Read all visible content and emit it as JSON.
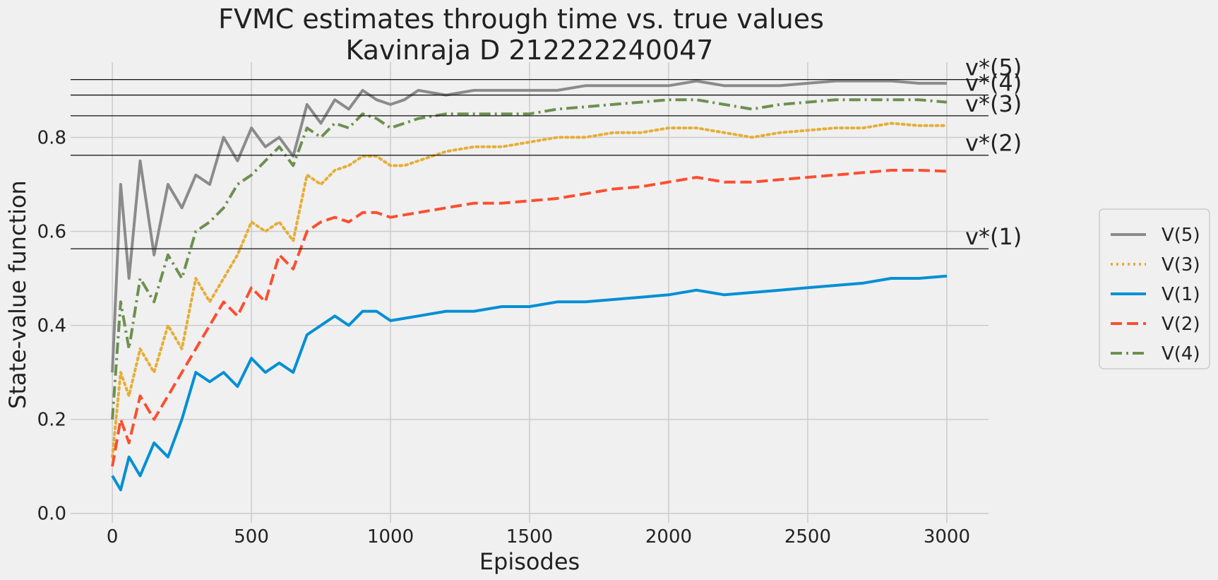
{
  "chart_data": {
    "type": "line",
    "title": "FVMC estimates through time vs. true values",
    "subtitle": "Kavinraja D 212222240047",
    "xlabel": "Episodes",
    "ylabel": "State-value function",
    "xlim": [
      -150,
      3150
    ],
    "ylim": [
      -0.02,
      0.96
    ],
    "xticks": [
      "0",
      "500",
      "1000",
      "1500",
      "2000",
      "2500",
      "3000"
    ],
    "yticks": [
      "0.0",
      "0.2",
      "0.4",
      "0.6",
      "0.8"
    ],
    "grid": true,
    "legend_position": "right",
    "reference_lines": [
      {
        "label": "v*(5)",
        "value": 0.923
      },
      {
        "label": "v*(4)",
        "value": 0.89
      },
      {
        "label": "v*(3)",
        "value": 0.846
      },
      {
        "label": "v*(2)",
        "value": 0.762
      },
      {
        "label": "v*(1)",
        "value": 0.563
      }
    ],
    "series": [
      {
        "name": "V(5)",
        "color": "#8b8b8b",
        "dash": "solid",
        "x": [
          0,
          30,
          60,
          100,
          150,
          200,
          250,
          300,
          350,
          400,
          450,
          500,
          550,
          600,
          650,
          700,
          750,
          800,
          850,
          900,
          950,
          1000,
          1050,
          1100,
          1200,
          1300,
          1400,
          1500,
          1600,
          1700,
          1800,
          1900,
          2000,
          2100,
          2200,
          2300,
          2400,
          2500,
          2600,
          2700,
          2800,
          2900,
          3000
        ],
        "y": [
          0.3,
          0.7,
          0.5,
          0.75,
          0.55,
          0.7,
          0.65,
          0.72,
          0.7,
          0.8,
          0.75,
          0.82,
          0.78,
          0.8,
          0.76,
          0.87,
          0.83,
          0.88,
          0.86,
          0.9,
          0.88,
          0.87,
          0.88,
          0.9,
          0.89,
          0.9,
          0.9,
          0.9,
          0.9,
          0.91,
          0.91,
          0.91,
          0.91,
          0.92,
          0.91,
          0.91,
          0.91,
          0.915,
          0.92,
          0.92,
          0.92,
          0.915,
          0.915
        ]
      },
      {
        "name": "V(3)",
        "color": "#e5ae38",
        "dash": "dotted",
        "x": [
          0,
          30,
          60,
          100,
          150,
          200,
          250,
          300,
          350,
          400,
          450,
          500,
          550,
          600,
          650,
          700,
          750,
          800,
          850,
          900,
          950,
          1000,
          1050,
          1100,
          1200,
          1300,
          1400,
          1500,
          1600,
          1700,
          1800,
          1900,
          2000,
          2100,
          2200,
          2300,
          2400,
          2500,
          2600,
          2700,
          2800,
          2900,
          3000
        ],
        "y": [
          0.12,
          0.3,
          0.25,
          0.35,
          0.3,
          0.4,
          0.35,
          0.5,
          0.45,
          0.5,
          0.55,
          0.62,
          0.6,
          0.62,
          0.58,
          0.72,
          0.7,
          0.73,
          0.74,
          0.76,
          0.76,
          0.74,
          0.74,
          0.75,
          0.77,
          0.78,
          0.78,
          0.79,
          0.8,
          0.8,
          0.81,
          0.81,
          0.82,
          0.82,
          0.81,
          0.8,
          0.81,
          0.815,
          0.82,
          0.82,
          0.83,
          0.825,
          0.825
        ]
      },
      {
        "name": "V(1)",
        "color": "#008fd5",
        "dash": "solid",
        "x": [
          0,
          30,
          60,
          100,
          150,
          200,
          250,
          300,
          350,
          400,
          450,
          500,
          550,
          600,
          650,
          700,
          750,
          800,
          850,
          900,
          950,
          1000,
          1050,
          1100,
          1200,
          1300,
          1400,
          1500,
          1600,
          1700,
          1800,
          1900,
          2000,
          2100,
          2200,
          2300,
          2400,
          2500,
          2600,
          2700,
          2800,
          2900,
          3000
        ],
        "y": [
          0.08,
          0.05,
          0.12,
          0.08,
          0.15,
          0.12,
          0.2,
          0.3,
          0.28,
          0.3,
          0.27,
          0.33,
          0.3,
          0.32,
          0.3,
          0.38,
          0.4,
          0.42,
          0.4,
          0.43,
          0.43,
          0.41,
          0.415,
          0.42,
          0.43,
          0.43,
          0.44,
          0.44,
          0.45,
          0.45,
          0.455,
          0.46,
          0.465,
          0.475,
          0.465,
          0.47,
          0.475,
          0.48,
          0.485,
          0.49,
          0.5,
          0.5,
          0.505
        ]
      },
      {
        "name": "V(2)",
        "color": "#fc4f30",
        "dash": "dashed",
        "x": [
          0,
          30,
          60,
          100,
          150,
          200,
          250,
          300,
          350,
          400,
          450,
          500,
          550,
          600,
          650,
          700,
          750,
          800,
          850,
          900,
          950,
          1000,
          1050,
          1100,
          1200,
          1300,
          1400,
          1500,
          1600,
          1700,
          1800,
          1900,
          2000,
          2100,
          2200,
          2300,
          2400,
          2500,
          2600,
          2700,
          2800,
          2900,
          3000
        ],
        "y": [
          0.1,
          0.2,
          0.15,
          0.25,
          0.2,
          0.25,
          0.3,
          0.35,
          0.4,
          0.45,
          0.42,
          0.48,
          0.45,
          0.55,
          0.52,
          0.6,
          0.62,
          0.63,
          0.62,
          0.64,
          0.64,
          0.63,
          0.635,
          0.64,
          0.65,
          0.66,
          0.66,
          0.665,
          0.67,
          0.68,
          0.69,
          0.695,
          0.705,
          0.715,
          0.705,
          0.705,
          0.71,
          0.715,
          0.72,
          0.725,
          0.73,
          0.73,
          0.728
        ]
      },
      {
        "name": "V(4)",
        "color": "#6d904f",
        "dash": "dashdot",
        "x": [
          0,
          30,
          60,
          100,
          150,
          200,
          250,
          300,
          350,
          400,
          450,
          500,
          550,
          600,
          650,
          700,
          750,
          800,
          850,
          900,
          950,
          1000,
          1050,
          1100,
          1200,
          1300,
          1400,
          1500,
          1600,
          1700,
          1800,
          1900,
          2000,
          2100,
          2200,
          2300,
          2400,
          2500,
          2600,
          2700,
          2800,
          2900,
          3000
        ],
        "y": [
          0.2,
          0.45,
          0.35,
          0.5,
          0.45,
          0.55,
          0.5,
          0.6,
          0.62,
          0.65,
          0.7,
          0.72,
          0.75,
          0.78,
          0.74,
          0.82,
          0.8,
          0.83,
          0.82,
          0.85,
          0.84,
          0.82,
          0.83,
          0.84,
          0.85,
          0.85,
          0.85,
          0.85,
          0.86,
          0.865,
          0.87,
          0.875,
          0.88,
          0.88,
          0.87,
          0.86,
          0.87,
          0.875,
          0.88,
          0.88,
          0.88,
          0.88,
          0.875
        ]
      }
    ]
  }
}
